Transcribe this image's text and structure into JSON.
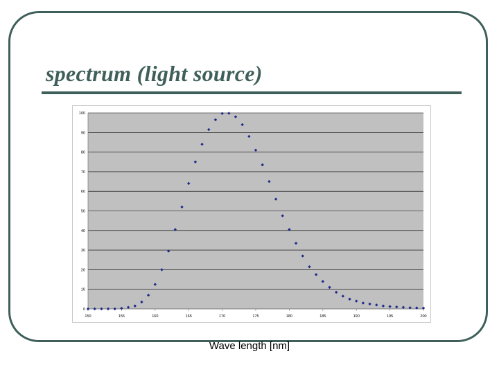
{
  "slide": {
    "title": "spectrum (light source)",
    "caption": "Wave length [nm]"
  },
  "colors": {
    "frame": "#3f5f5a",
    "title": "#3f5f5a",
    "plot_background": "#c0c0c0",
    "gridline": "#000000",
    "marker": "#1f2a8a"
  },
  "chart_data": {
    "type": "scatter",
    "title": "",
    "xlabel": "Wave length [nm]",
    "ylabel": "",
    "xlim": [
      150,
      200
    ],
    "ylim": [
      0,
      100
    ],
    "x_ticks": [
      "150",
      "155",
      "160",
      "165",
      "170",
      "175",
      "180",
      "185",
      "190",
      "195",
      "200"
    ],
    "y_ticks": [
      "0",
      "10",
      "20",
      "30",
      "40",
      "50",
      "60",
      "70",
      "80",
      "90",
      "100"
    ],
    "grid": "horizontal",
    "legend": "none",
    "series": [
      {
        "marker": "diamond",
        "x": [
          150,
          151,
          152,
          153,
          154,
          155,
          156,
          157,
          158,
          159,
          160,
          161,
          162,
          163,
          164,
          165,
          166,
          167,
          168,
          169,
          170,
          171,
          172,
          173,
          174,
          175,
          176,
          177,
          178,
          179,
          180,
          181,
          182,
          183,
          184,
          185,
          186,
          187,
          188,
          189,
          190,
          191,
          192,
          193,
          194,
          195,
          196,
          197,
          198,
          199,
          200
        ],
        "y": [
          0,
          0,
          0,
          0,
          0,
          0.3,
          0.8,
          1.5,
          3.5,
          7,
          12.5,
          20,
          29.5,
          40.5,
          52,
          64,
          75,
          84,
          91.5,
          96.5,
          99.7,
          99.8,
          98,
          94,
          88,
          81,
          73.5,
          65,
          56,
          47.5,
          40.5,
          33.5,
          27,
          21.5,
          17.5,
          14,
          11,
          8.5,
          6.5,
          5,
          4,
          3,
          2.5,
          2,
          1.5,
          1.2,
          1,
          0.8,
          0.6,
          0.5,
          0.4
        ]
      }
    ]
  }
}
